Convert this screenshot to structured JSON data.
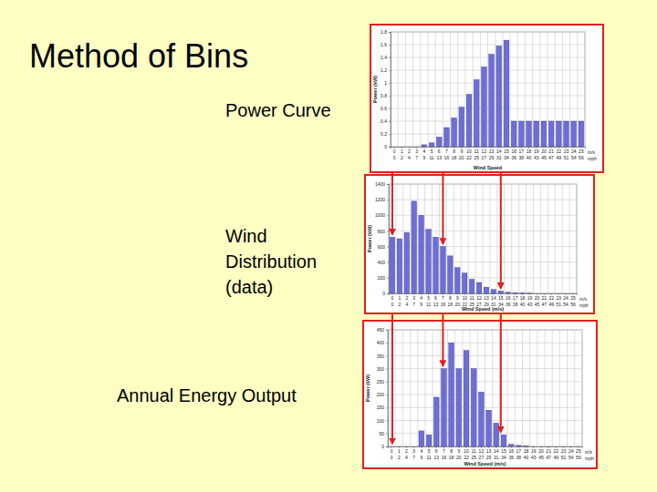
{
  "slide": {
    "title": "Method of Bins",
    "labels": [
      [
        "Power Curve"
      ],
      [
        "Wind",
        "Distribution",
        "(data)"
      ],
      [
        "Annual Energy Output"
      ]
    ]
  },
  "chart_data": [
    {
      "type": "bar",
      "y_label": "Power (kW)",
      "x_label": "Wind Speed",
      "x_units": [
        "m/s",
        "mph"
      ],
      "categories": [
        "0",
        "1",
        "2",
        "3",
        "4",
        "5",
        "6",
        "7",
        "8",
        "9",
        "10",
        "11",
        "12",
        "13",
        "14",
        "15",
        "16",
        "17",
        "18",
        "19",
        "20",
        "21",
        "22",
        "23",
        "24",
        "25"
      ],
      "x2_labels": [
        "0",
        "2",
        "4",
        "7",
        "9",
        "11",
        "13",
        "16",
        "18",
        "20",
        "22",
        "25",
        "27",
        "29",
        "31",
        "34",
        "36",
        "38",
        "40",
        "43",
        "45",
        "47",
        "49",
        "51",
        "54",
        "56"
      ],
      "values": [
        0,
        0,
        0,
        0,
        0.03,
        0.06,
        0.15,
        0.3,
        0.45,
        0.62,
        0.82,
        1.05,
        1.25,
        1.45,
        1.58,
        1.67,
        0.4,
        0.4,
        0.4,
        0.4,
        0.4,
        0.4,
        0.4,
        0.4,
        0.4,
        0.4
      ],
      "color": "#6e6ed6",
      "ylim": [
        0,
        1.8
      ],
      "yticks": [
        0,
        0.2,
        0.4,
        0.6,
        0.8,
        1,
        1.2,
        1.4,
        1.6,
        1.8
      ],
      "grid": true
    },
    {
      "type": "bar",
      "y_label": "Power (kW)",
      "x_label": "Wind Speed (m/s)",
      "x_units": [
        "m/s",
        "mph"
      ],
      "categories": [
        "0",
        "1",
        "2",
        "3",
        "4",
        "5",
        "6",
        "7",
        "8",
        "9",
        "10",
        "11",
        "12",
        "13",
        "14",
        "15",
        "16",
        "17",
        "18",
        "19",
        "20",
        "21",
        "22",
        "23",
        "24",
        "25"
      ],
      "x2_labels": [
        "0",
        "2",
        "4",
        "7",
        "9",
        "11",
        "13",
        "16",
        "18",
        "20",
        "22",
        "25",
        "27",
        "29",
        "31",
        "34",
        "36",
        "38",
        "40",
        "43",
        "45",
        "47",
        "49",
        "51",
        "54",
        "56"
      ],
      "values": [
        720,
        700,
        780,
        1180,
        1000,
        820,
        720,
        600,
        480,
        330,
        260,
        180,
        140,
        80,
        50,
        30,
        15,
        8,
        4,
        2,
        0,
        0,
        0,
        0,
        0,
        0
      ],
      "color": "#6e6ed6",
      "ylim": [
        0,
        1400
      ],
      "yticks": [
        0,
        200,
        400,
        600,
        800,
        1000,
        1200,
        1400
      ],
      "grid": true
    },
    {
      "type": "bar",
      "y_label": "Power (kW)",
      "x_label": "Wind Speed (m/s)",
      "x_units": [
        "m/s",
        "mph"
      ],
      "categories": [
        "0",
        "1",
        "2",
        "3",
        "4",
        "5",
        "6",
        "7",
        "8",
        "9",
        "10",
        "11",
        "12",
        "13",
        "14",
        "15",
        "16",
        "17",
        "18",
        "19",
        "20",
        "21",
        "22",
        "23",
        "24",
        "25"
      ],
      "x2_labels": [
        "0",
        "2",
        "4",
        "7",
        "9",
        "11",
        "13",
        "16",
        "18",
        "20",
        "22",
        "25",
        "27",
        "29",
        "31",
        "34",
        "36",
        "38",
        "40",
        "43",
        "45",
        "47",
        "49",
        "51",
        "54",
        "56"
      ],
      "values": [
        0,
        0,
        0,
        0,
        60,
        45,
        190,
        300,
        400,
        300,
        370,
        300,
        210,
        140,
        90,
        45,
        8,
        4,
        2,
        0,
        0,
        0,
        0,
        0,
        0,
        0
      ],
      "color": "#6e6ed6",
      "ylim": [
        0,
        450
      ],
      "yticks": [
        0,
        50,
        100,
        150,
        200,
        250,
        300,
        350,
        400,
        450
      ],
      "grid": true
    }
  ]
}
